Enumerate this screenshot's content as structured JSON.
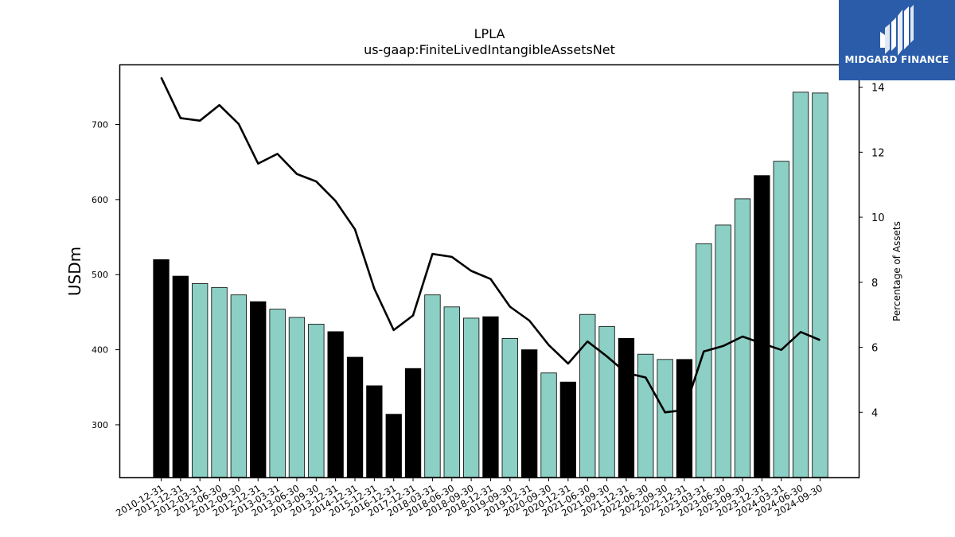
{
  "chart_data": {
    "type": "bar",
    "title": "LPLA",
    "subtitle": "us-gaap:FiniteLivedIntangibleAssetsNet",
    "ylabel": "USDm",
    "y2label": "Percentage of Assets",
    "ylim": [
      230,
      780
    ],
    "y2lim": [
      2.0,
      14.7
    ],
    "yticks": [
      300,
      400,
      500,
      600,
      700
    ],
    "y2ticks": [
      4,
      6,
      8,
      10,
      12,
      14
    ],
    "categories": [
      "2010-12-31",
      "2011-12-31",
      "2012-03-31",
      "2012-06-30",
      "2012-09-30",
      "2012-12-31",
      "2013-03-31",
      "2013-06-30",
      "2013-09-30",
      "2013-12-31",
      "2014-12-31",
      "2015-12-31",
      "2016-12-31",
      "2017-12-31",
      "2018-03-31",
      "2018-06-30",
      "2018-09-30",
      "2018-12-31",
      "2019-09-30",
      "2019-12-31",
      "2020-09-30",
      "2020-12-31",
      "2021-06-30",
      "2021-09-30",
      "2021-12-31",
      "2022-06-30",
      "2022-09-30",
      "2022-12-31",
      "2023-03-31",
      "2023-06-30",
      "2023-09-30",
      "2023-12-31",
      "2024-03-31",
      "2024-06-30",
      "2024-09-30"
    ],
    "series": [
      {
        "type": "bar",
        "axis": "left",
        "values": [
          520,
          498,
          488,
          483,
          473,
          464,
          454,
          443,
          434,
          424,
          390,
          352,
          314,
          375,
          473,
          457,
          442,
          444,
          415,
          400,
          369,
          357,
          447,
          431,
          415,
          394,
          387,
          387,
          541,
          566,
          601,
          632,
          651,
          743,
          742
        ],
        "colors": [
          "#000000",
          "#000000",
          "#8ccfc4",
          "#8ccfc4",
          "#8ccfc4",
          "#000000",
          "#8ccfc4",
          "#8ccfc4",
          "#8ccfc4",
          "#000000",
          "#000000",
          "#000000",
          "#000000",
          "#000000",
          "#8ccfc4",
          "#8ccfc4",
          "#8ccfc4",
          "#000000",
          "#8ccfc4",
          "#000000",
          "#8ccfc4",
          "#000000",
          "#8ccfc4",
          "#8ccfc4",
          "#000000",
          "#8ccfc4",
          "#8ccfc4",
          "#000000",
          "#8ccfc4",
          "#8ccfc4",
          "#8ccfc4",
          "#000000",
          "#8ccfc4",
          "#8ccfc4",
          "#8ccfc4"
        ]
      },
      {
        "type": "line",
        "axis": "right",
        "color": "#000000",
        "values": [
          14.3,
          13.05,
          12.97,
          13.45,
          12.87,
          11.65,
          11.95,
          11.33,
          11.1,
          10.5,
          9.63,
          7.8,
          6.53,
          6.98,
          8.87,
          8.78,
          8.35,
          8.1,
          7.25,
          6.82,
          6.07,
          5.5,
          6.18,
          5.72,
          5.21,
          5.07,
          4.0,
          4.07,
          5.87,
          6.04,
          6.33,
          6.12,
          5.92,
          6.47,
          6.22
        ]
      }
    ],
    "grid": false,
    "legend": "none"
  },
  "logo": {
    "text": "MIDGARD FINANCE",
    "background": "#2a5caa",
    "color": "#ffffff"
  }
}
